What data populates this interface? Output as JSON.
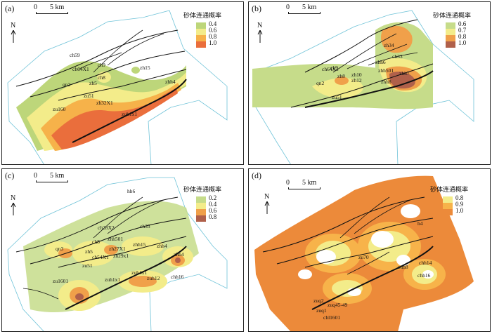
{
  "legend_title": "砂体连通概率",
  "scale_zero": "0",
  "scale_dist": "5 km",
  "north": "N",
  "panels": [
    {
      "label": "(a)",
      "legend": [
        {
          "value": "0.4",
          "color": "#bdd67a"
        },
        {
          "value": "0.6",
          "color": "#f3ec8a"
        },
        {
          "value": "0.8",
          "color": "#f6b24a"
        },
        {
          "value": "1.0",
          "color": "#ea6e3c"
        }
      ],
      "wells": [
        "ch59",
        "ch64X1",
        "ch8",
        "zh5",
        "zh15",
        "zhh4",
        "qn2",
        "zu51",
        "zu160",
        "zh32X1",
        "zuh1x1",
        "ch9"
      ]
    },
    {
      "label": "(b)",
      "legend": [
        {
          "value": "0.6",
          "color": "#c6dc8a"
        },
        {
          "value": "0.7",
          "color": "#f3ec8a"
        },
        {
          "value": "0.8",
          "color": "#f0a04a"
        },
        {
          "value": "1.0",
          "color": "#b0604a"
        }
      ],
      "wells": [
        "zh34",
        "zhh6",
        "ch33",
        "ch64X1",
        "ch9",
        "zhh501",
        "zhh7",
        "zh8",
        "zh10",
        "zh12",
        "zhh8",
        "qn2",
        "zu51"
      ]
    },
    {
      "label": "(c)",
      "legend": [
        {
          "value": "0.2",
          "color": "#c6dc8a"
        },
        {
          "value": "0.4",
          "color": "#f3ec8a"
        },
        {
          "value": "0.6",
          "color": "#f0a04a"
        },
        {
          "value": "0.8",
          "color": "#b0604a"
        }
      ],
      "wells": [
        "hh6",
        "ch33",
        "ch28X2",
        "ch8",
        "zhh501",
        "zhh15",
        "zhh4",
        "qn3",
        "zh5",
        "zh27X1",
        "ch54X1",
        "zh29x1",
        "zhh4",
        "zu51",
        "zu1601",
        "zuh1x1",
        "zuh4x1",
        "zuh12",
        "chh16"
      ]
    },
    {
      "label": "(d)",
      "legend": [
        {
          "value": "0.8",
          "color": "#f3ec8a"
        },
        {
          "value": "0.9",
          "color": "#f7b34a"
        },
        {
          "value": "1.0",
          "color": "#ec8a3a"
        }
      ],
      "wells": [
        "h4",
        "zu70",
        "zuh8",
        "chh14",
        "chh16",
        "zuq2",
        "zuq1",
        "zuq45-49",
        "chl1601"
      ]
    }
  ]
}
